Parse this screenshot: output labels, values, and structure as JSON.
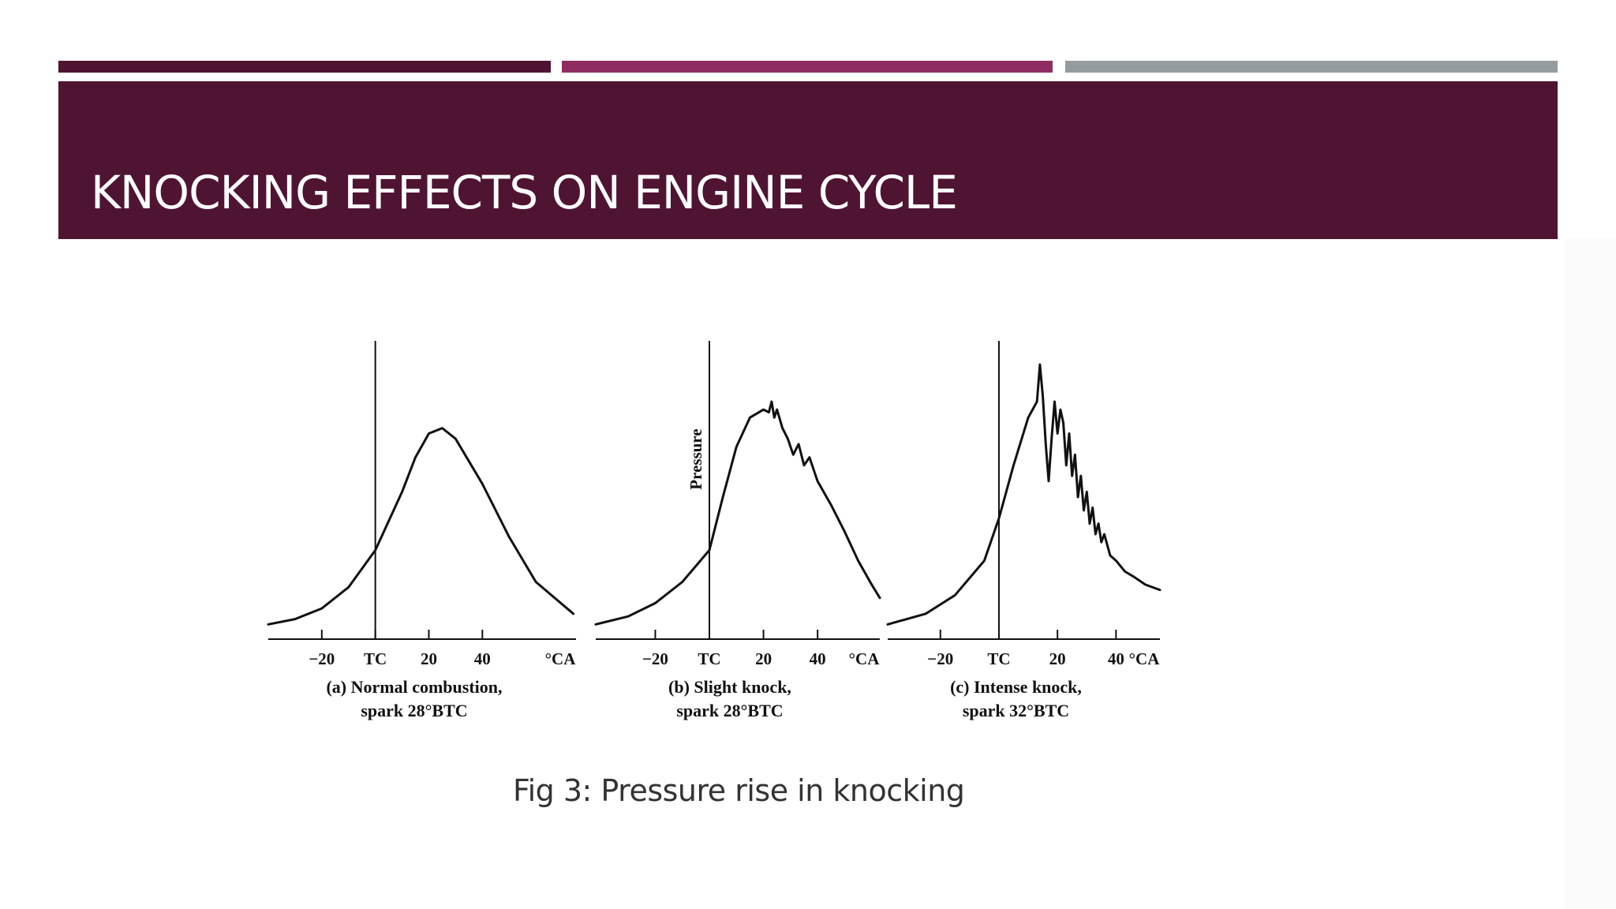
{
  "slide": {
    "title": "KNOCKING EFFECTS ON ENGINE CYCLE",
    "caption": "Fig 3: Pressure rise in knocking"
  },
  "colors": {
    "title_band": "#501433",
    "accent_bar_1": "#501433",
    "accent_bar_2": "#8f2d62",
    "accent_bar_3": "#949ca0",
    "curve": "#111111"
  },
  "chart_data": [
    {
      "type": "line",
      "panel": "a",
      "caption_line1": "(a) Normal combustion,",
      "caption_line2": "spark 28°BTC",
      "xlabel": "",
      "ylabel": "",
      "x_tick_labels": [
        "−20",
        "TC",
        "20",
        "40",
        "°CA"
      ],
      "x_ticks": [
        -20,
        0,
        20,
        40
      ],
      "xlim": [
        -40,
        75
      ],
      "ylim": [
        0,
        1
      ],
      "tc_line": 0,
      "series": [
        {
          "x": [
            -40,
            -30,
            -20,
            -10,
            0,
            10,
            15,
            20,
            25,
            30,
            40,
            50,
            60,
            74
          ],
          "y": [
            0.02,
            0.04,
            0.08,
            0.16,
            0.3,
            0.52,
            0.65,
            0.74,
            0.76,
            0.72,
            0.55,
            0.35,
            0.18,
            0.06
          ]
        }
      ]
    },
    {
      "type": "line",
      "panel": "b",
      "caption_line1": "(b) Slight knock,",
      "caption_line2": "spark 28°BTC",
      "xlabel": "",
      "ylabel": "Pressure",
      "x_tick_labels": [
        "−20",
        "TC",
        "20",
        "40",
        "°CA"
      ],
      "x_ticks": [
        -20,
        0,
        20,
        40
      ],
      "xlim": [
        -42,
        63
      ],
      "ylim": [
        0,
        1
      ],
      "tc_line": 0,
      "series": [
        {
          "x": [
            -42,
            -30,
            -20,
            -10,
            0,
            5,
            10,
            15,
            20,
            22,
            23,
            24,
            25,
            27,
            29,
            31,
            33,
            35,
            37,
            40,
            45,
            50,
            55,
            60,
            63
          ],
          "y": [
            0.02,
            0.05,
            0.1,
            0.18,
            0.3,
            0.5,
            0.69,
            0.8,
            0.83,
            0.82,
            0.86,
            0.8,
            0.83,
            0.76,
            0.72,
            0.66,
            0.7,
            0.62,
            0.65,
            0.56,
            0.47,
            0.37,
            0.26,
            0.17,
            0.12
          ]
        }
      ]
    },
    {
      "type": "line",
      "panel": "c",
      "caption_line1": "(c) Intense knock,",
      "caption_line2": "spark 32°BTC",
      "xlabel": "",
      "ylabel": "",
      "x_tick_labels": [
        "−20",
        "TC",
        "20",
        "40",
        "°CA"
      ],
      "x_ticks": [
        -20,
        0,
        20,
        40
      ],
      "xlim": [
        -38,
        55
      ],
      "ylim": [
        0,
        1
      ],
      "tc_line": 0,
      "series": [
        {
          "x": [
            -38,
            -25,
            -15,
            -5,
            0,
            5,
            10,
            13,
            14,
            15,
            16,
            17,
            18,
            19,
            20,
            21,
            22,
            23,
            24,
            25,
            26,
            27,
            28,
            29,
            30,
            31,
            32,
            33,
            34,
            35,
            36,
            38,
            40,
            43,
            46,
            50,
            55
          ],
          "y": [
            0.02,
            0.06,
            0.13,
            0.26,
            0.42,
            0.62,
            0.8,
            0.86,
            1.0,
            0.88,
            0.7,
            0.56,
            0.72,
            0.86,
            0.74,
            0.83,
            0.78,
            0.62,
            0.74,
            0.58,
            0.66,
            0.5,
            0.58,
            0.45,
            0.52,
            0.4,
            0.46,
            0.36,
            0.4,
            0.33,
            0.36,
            0.28,
            0.26,
            0.22,
            0.2,
            0.17,
            0.15
          ]
        }
      ]
    }
  ]
}
